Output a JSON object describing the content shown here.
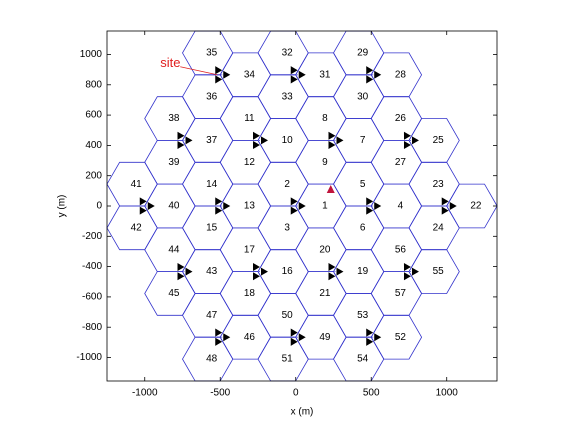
{
  "chart_data": {
    "type": "scatter",
    "xlabel": "x (m)",
    "ylabel": "y (m)",
    "xlim": [
      -1250,
      1333
    ],
    "ylim": [
      -1155,
      1155
    ],
    "xticks": [
      -1000,
      -500,
      0,
      500,
      1000
    ],
    "yticks": [
      -1000,
      -800,
      -600,
      -400,
      -200,
      0,
      200,
      400,
      600,
      800,
      1000
    ],
    "sites": {
      "color": "#000000",
      "x": [
        0,
        500,
        250,
        -250,
        -500,
        -250,
        250,
        1000,
        750,
        500,
        0,
        -500,
        -750,
        -1000,
        -750,
        -500,
        0,
        500,
        750
      ],
      "y": [
        0,
        0,
        433,
        433,
        0,
        -433,
        -433,
        0,
        433,
        866,
        866,
        866,
        433,
        0,
        -433,
        -866,
        -866,
        -866,
        -433
      ]
    },
    "cells": {
      "color": "#3333cc",
      "labels": [
        "1",
        "2",
        "3",
        "4",
        "5",
        "6",
        "7",
        "8",
        "9",
        "10",
        "11",
        "12",
        "13",
        "14",
        "15",
        "16",
        "17",
        "18",
        "19",
        "20",
        "21",
        "22",
        "23",
        "24",
        "25",
        "26",
        "27",
        "28",
        "29",
        "30",
        "31",
        "32",
        "33",
        "34",
        "35",
        "36",
        "37",
        "38",
        "39",
        "40",
        "41",
        "42",
        "43",
        "44",
        "45",
        "46",
        "47",
        "48",
        "49",
        "50",
        "51",
        "52",
        "53",
        "54",
        "55",
        "56",
        "57"
      ],
      "x": [
        166.7,
        -83.3,
        -83.3,
        666.7,
        416.7,
        416.7,
        416.7,
        166.7,
        166.7,
        -83.3,
        -333.3,
        -333.3,
        -333.3,
        -583.3,
        -583.3,
        -83.3,
        -333.3,
        -333.3,
        416.7,
        166.7,
        166.7,
        1166.7,
        916.7,
        916.7,
        916.7,
        666.7,
        666.7,
        666.7,
        416.7,
        416.7,
        166.7,
        -83.3,
        -83.3,
        -333.3,
        -583.3,
        -583.3,
        -583.3,
        -833.3,
        -833.3,
        -833.3,
        -1083.3,
        -1083.3,
        -583.3,
        -833.3,
        -833.3,
        -333.3,
        -583.3,
        -583.3,
        166.7,
        -83.3,
        -83.3,
        666.7,
        416.7,
        416.7,
        916.7,
        666.7,
        666.7
      ],
      "y": [
        0,
        144.3,
        -144.3,
        0,
        144.3,
        -144.3,
        433,
        577.3,
        288.7,
        433,
        577.3,
        288.7,
        0,
        144.3,
        -144.3,
        -433,
        -288.7,
        -577.3,
        -433,
        -288.7,
        -577.3,
        0,
        144.3,
        -144.3,
        433,
        577.3,
        288.7,
        866,
        1010.3,
        721.7,
        866,
        1010.3,
        721.7,
        866,
        1010.3,
        721.7,
        433,
        577.3,
        288.7,
        0,
        144.3,
        -144.3,
        -433,
        -288.7,
        -577.3,
        -866,
        -721.7,
        -1010.3,
        -866,
        -721.7,
        -1010.3,
        -866,
        -721.7,
        -1010.3,
        -433,
        -288.7,
        -577.3
      ]
    },
    "user": {
      "x": 232,
      "y": 106,
      "color": "#c0143c"
    },
    "annotation": {
      "text": "site",
      "x": -500,
      "y": 866,
      "color": "#e02020"
    }
  }
}
